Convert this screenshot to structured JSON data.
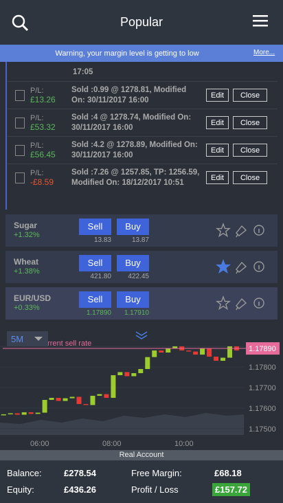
{
  "header": {
    "title": "Popular"
  },
  "warning": {
    "text": "Warning, your margin level is getting to low",
    "link": "More..."
  },
  "orders": {
    "partial_time": "17:05",
    "rows": [
      {
        "pl_label": "P/L:",
        "pl": "£13.26",
        "negative": false,
        "detail": "Sold :0.99 @ 1278.81, Modified On: 30/11/2017 16:00",
        "edit": "Edit",
        "close": "Close"
      },
      {
        "pl_label": "P/L:",
        "pl": "£53.32",
        "negative": false,
        "detail": "Sold :4 @ 1278.74, Modified On: 30/11/2017 16:00",
        "edit": "Edit",
        "close": "Close"
      },
      {
        "pl_label": "P/L:",
        "pl": "£56.45",
        "negative": false,
        "detail": "Sold :4.2 @ 1278.89, Modified On: 30/11/2017 16:00",
        "edit": "Edit",
        "close": "Close"
      },
      {
        "pl_label": "P/L:",
        "pl": "-£8.59",
        "negative": true,
        "detail": "Sold :7.26 @ 1257.85, TP: 1256.59, Modified On: 18/12/2017 10:51",
        "edit": "Edit",
        "close": "Close"
      }
    ]
  },
  "markets": [
    {
      "name": "Sugar",
      "change": "+1.32%",
      "sell": "Sell",
      "buy": "Buy",
      "sell_price": "13.83",
      "buy_price": "13.87",
      "favorite": false,
      "highlight": false
    },
    {
      "name": "Wheat",
      "change": "+1.38%",
      "sell": "Sell",
      "buy": "Buy",
      "sell_price": "421.80",
      "buy_price": "422.45",
      "favorite": true,
      "highlight": false
    },
    {
      "name": "EUR/USD",
      "change": "+0.33%",
      "sell": "Sell",
      "buy": "Buy",
      "sell_price": "1.17890",
      "buy_price": "1.17910",
      "favorite": false,
      "highlight": true
    }
  ],
  "chart": {
    "type": "candlestick",
    "timeframe": "5M",
    "sell_rate_label": "Current sell rate",
    "current_rate": {
      "value": 1.1789,
      "label": "1.17890"
    },
    "xlim": [
      4.9,
      11.66
    ],
    "xticks": [
      {
        "value": 6,
        "label": "06:00"
      },
      {
        "value": 8,
        "label": "08:00"
      },
      {
        "value": 10,
        "label": "10:00"
      }
    ],
    "ylim": [
      1.17473,
      1.17987
    ],
    "yticks": [
      {
        "value": 1.179,
        "label": "1.17900"
      },
      {
        "value": 1.178,
        "label": "1.17800"
      },
      {
        "value": 1.177,
        "label": "1.17700"
      },
      {
        "value": 1.176,
        "label": "1.17600"
      },
      {
        "value": 1.175,
        "label": "1.17500"
      }
    ],
    "up_color": "#9ccc2e",
    "down_color": "#e53935",
    "x": [
      5.0,
      5.19,
      5.38,
      5.57,
      5.76,
      5.95,
      6.14,
      6.33,
      6.52,
      6.71,
      6.9,
      7.09,
      7.28,
      7.47,
      7.66,
      7.85,
      8.04,
      8.23,
      8.42,
      8.61,
      8.8,
      8.99,
      9.18,
      9.37,
      9.56,
      9.75,
      9.94,
      10.13,
      10.32,
      10.51,
      10.7,
      10.89,
      11.08,
      11.27,
      11.46
    ],
    "open": [
      1.17565,
      1.1757,
      1.17575,
      1.17568,
      1.1758,
      1.17572,
      1.17578,
      1.1764,
      1.1765,
      1.17635,
      1.17648,
      1.17655,
      1.1762,
      1.17615,
      1.1766,
      1.17668,
      1.1765,
      1.1776,
      1.17775,
      1.17755,
      1.1777,
      1.1779,
      1.17848,
      1.1788,
      1.1787,
      1.1789,
      1.179,
      1.1788,
      1.17875,
      1.1786,
      1.1789,
      1.1785,
      1.1783,
      1.17845,
      1.179
    ],
    "close": [
      1.1757,
      1.17575,
      1.17568,
      1.1758,
      1.17572,
      1.17578,
      1.1764,
      1.1765,
      1.17635,
      1.17648,
      1.17655,
      1.1762,
      1.17615,
      1.1766,
      1.17668,
      1.1765,
      1.1776,
      1.17775,
      1.17755,
      1.1777,
      1.1779,
      1.17848,
      1.1788,
      1.1787,
      1.1789,
      1.179,
      1.1788,
      1.17875,
      1.1786,
      1.1789,
      1.1785,
      1.1783,
      1.17845,
      1.179,
      1.1788
    ]
  },
  "account": {
    "title": "Real Account",
    "items": [
      {
        "label": "Balance:",
        "value": "£278.54"
      },
      {
        "label": "Free Margin:",
        "value": "£68.18"
      },
      {
        "label": "Equity:",
        "value": "£436.26"
      },
      {
        "label": "Profit / Loss",
        "value": "£157.72",
        "highlight": true
      }
    ]
  }
}
